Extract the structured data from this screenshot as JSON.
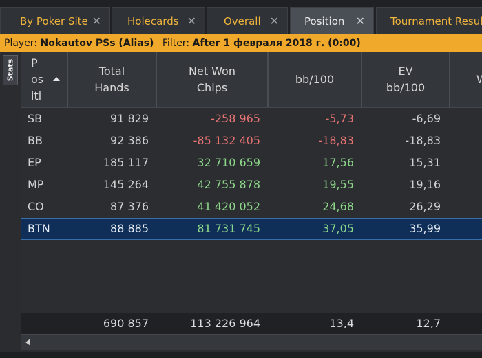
{
  "tabs": [
    {
      "label": "By Poker Site",
      "close": "✕"
    },
    {
      "label": "Holecards",
      "close": "✕"
    },
    {
      "label": "Overall",
      "close": "✕"
    },
    {
      "label": "Position",
      "close": "✕",
      "active": true
    },
    {
      "label": "Tournament Results",
      "close": ""
    }
  ],
  "filterbar": {
    "player_label": "Player:",
    "player_value": "Nokautov PSs (Alias)",
    "filter_label": "Filter:",
    "filter_value": "After 1 февраля 2018 г. (0:00)"
  },
  "sidepanel": {
    "stats_tab": "Stats"
  },
  "columns": {
    "position": "Posi\ntion",
    "position_lines": [
      "P",
      "os",
      "iti"
    ],
    "total_hands": [
      "Total",
      "Hands"
    ],
    "net_won": [
      "Net Won",
      "Chips"
    ],
    "bb100": "bb/100",
    "ev_bb100": [
      "EV",
      "bb/100"
    ],
    "cut_col": "W"
  },
  "rows": [
    {
      "position": "SB",
      "total_hands": "91 829",
      "net_won": "-258 965",
      "bb100": "-5,73",
      "ev_bb100": "-6,69"
    },
    {
      "position": "BB",
      "total_hands": "92 386",
      "net_won": "-85 132 405",
      "bb100": "-18,83",
      "ev_bb100": "-18,83"
    },
    {
      "position": "EP",
      "total_hands": "185 117",
      "net_won": "32 710 659",
      "bb100": "17,56",
      "ev_bb100": "15,31"
    },
    {
      "position": "MP",
      "total_hands": "145 264",
      "net_won": "42 755 878",
      "bb100": "19,55",
      "ev_bb100": "19,16"
    },
    {
      "position": "CO",
      "total_hands": "87 376",
      "net_won": "41 420 052",
      "bb100": "24,68",
      "ev_bb100": "26,29"
    },
    {
      "position": "BTN",
      "total_hands": "88 885",
      "net_won": "81 731 745",
      "bb100": "37,05",
      "ev_bb100": "35,99"
    }
  ],
  "totals": {
    "total_hands": "690 857",
    "net_won": "113 226 964",
    "bb100": "13,4",
    "ev_bb100": "12,7"
  },
  "colors": {
    "accent": "#f1a92c",
    "tab_text": "#f0b43c",
    "negative": "#e77373",
    "positive": "#8ed88a",
    "selected_row": "#0f2f58"
  }
}
